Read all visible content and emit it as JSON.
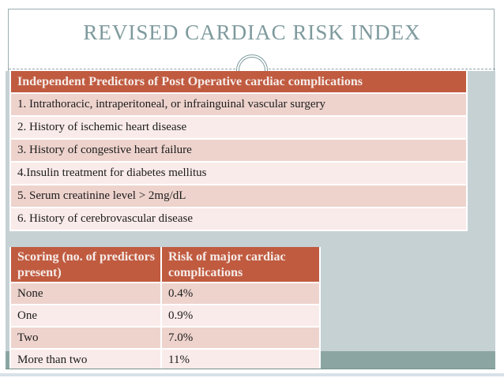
{
  "slide": {
    "title": "REVISED CARDIAC RISK INDEX"
  },
  "predictors_table": {
    "header": "Independent Predictors of Post Operative cardiac complications",
    "rows": [
      "1. Intrathoracic, intraperitoneal, or infrainguinal vascular surgery",
      "2. History of ischemic heart disease",
      "3. History of congestive heart failure",
      "4.Insulin treatment for diabetes mellitus",
      "5. Serum creatinine level > 2mg/dL",
      "6. History of cerebrovascular disease"
    ]
  },
  "scoring_table": {
    "headers": [
      "Scoring (no. of predictors present)",
      "Risk of  major cardiac complications"
    ],
    "rows": [
      {
        "score": "None",
        "risk": "0.4%"
      },
      {
        "score": "One",
        "risk": "0.9%"
      },
      {
        "score": "Two",
        "risk": "7.0%"
      },
      {
        "score": "More than two",
        "risk": "11%"
      }
    ]
  },
  "colors": {
    "table_header_bg": "#c05b40",
    "row_dark": "#eed3cd",
    "row_light": "#f9ebe9",
    "content_background": "#c6d1d4",
    "bottom_band": "#8ba6a2",
    "title_text": "#7e9a9d",
    "frame_border": "#9badb0"
  }
}
